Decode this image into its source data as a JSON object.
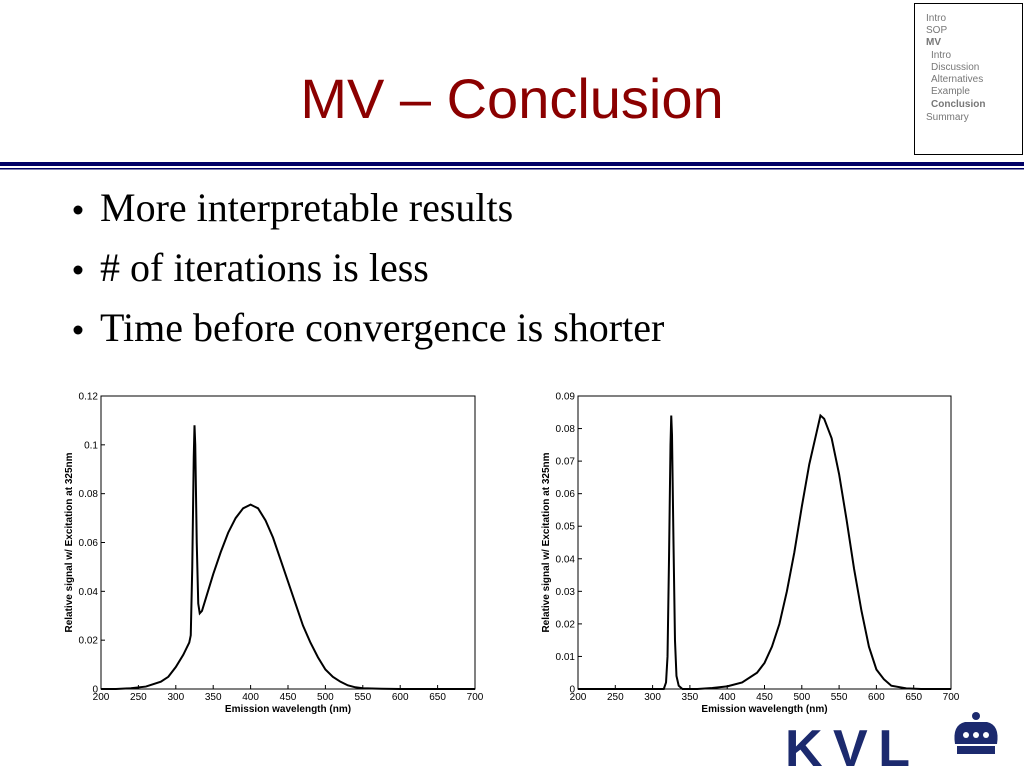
{
  "slide": {
    "title": "MV – Conclusion",
    "nav": [
      "Intro",
      "SOP",
      "MV",
      "Intro",
      "Discussion",
      "Alternatives",
      "Example",
      "Conclusion",
      "Summary"
    ],
    "bullets": [
      "More interpretable results",
      "# of iterations is less",
      "Time before convergence is shorter"
    ],
    "logo": "KVL"
  },
  "chart_data": [
    {
      "type": "line",
      "color": "#000000",
      "xlabel": "Emission wavelength (nm)",
      "ylabel": "Relative signal w/ Excitation at 325nm",
      "xlim": [
        200,
        700
      ],
      "ylim": [
        0,
        0.12
      ],
      "xticks": [
        200,
        250,
        300,
        350,
        400,
        450,
        500,
        550,
        600,
        650,
        700
      ],
      "yticks": [
        0,
        0.02,
        0.04,
        0.06,
        0.08,
        0.1,
        0.12
      ],
      "x": [
        200,
        220,
        240,
        260,
        280,
        290,
        300,
        310,
        318,
        320,
        322,
        324,
        325,
        326,
        328,
        330,
        332,
        335,
        340,
        350,
        360,
        370,
        380,
        390,
        400,
        410,
        420,
        430,
        440,
        450,
        460,
        470,
        480,
        490,
        500,
        510,
        520,
        530,
        540,
        550,
        575,
        600,
        650,
        700
      ],
      "values": [
        0,
        0,
        0.0003,
        0.001,
        0.003,
        0.005,
        0.009,
        0.014,
        0.019,
        0.022,
        0.05,
        0.095,
        0.108,
        0.1,
        0.06,
        0.035,
        0.031,
        0.032,
        0.037,
        0.047,
        0.056,
        0.064,
        0.07,
        0.074,
        0.0755,
        0.074,
        0.069,
        0.062,
        0.053,
        0.044,
        0.035,
        0.026,
        0.019,
        0.013,
        0.008,
        0.005,
        0.003,
        0.0015,
        0.0007,
        0.0003,
        0.0001,
        0,
        0,
        0
      ]
    },
    {
      "type": "line",
      "color": "#000000",
      "xlabel": "Emission wavelength (nm)",
      "ylabel": "Relative signal w/ Excitation at 325nm",
      "xlim": [
        200,
        700
      ],
      "ylim": [
        0,
        0.09
      ],
      "xticks": [
        200,
        250,
        300,
        350,
        400,
        450,
        500,
        550,
        600,
        650,
        700
      ],
      "yticks": [
        0,
        0.01,
        0.02,
        0.03,
        0.04,
        0.05,
        0.06,
        0.07,
        0.08,
        0.09
      ],
      "x": [
        200,
        300,
        315,
        318,
        320,
        322,
        324,
        325,
        326,
        328,
        330,
        332,
        335,
        340,
        360,
        380,
        400,
        420,
        440,
        450,
        460,
        470,
        480,
        490,
        500,
        510,
        520,
        525,
        530,
        540,
        550,
        560,
        570,
        580,
        590,
        600,
        610,
        620,
        640,
        660,
        700
      ],
      "values": [
        0,
        0,
        0,
        0.002,
        0.01,
        0.04,
        0.075,
        0.084,
        0.078,
        0.045,
        0.015,
        0.004,
        0.001,
        0,
        0,
        0.0003,
        0.0008,
        0.002,
        0.005,
        0.008,
        0.013,
        0.02,
        0.03,
        0.042,
        0.056,
        0.069,
        0.079,
        0.084,
        0.083,
        0.077,
        0.066,
        0.052,
        0.037,
        0.024,
        0.013,
        0.006,
        0.003,
        0.001,
        0.0002,
        0,
        0
      ]
    }
  ]
}
